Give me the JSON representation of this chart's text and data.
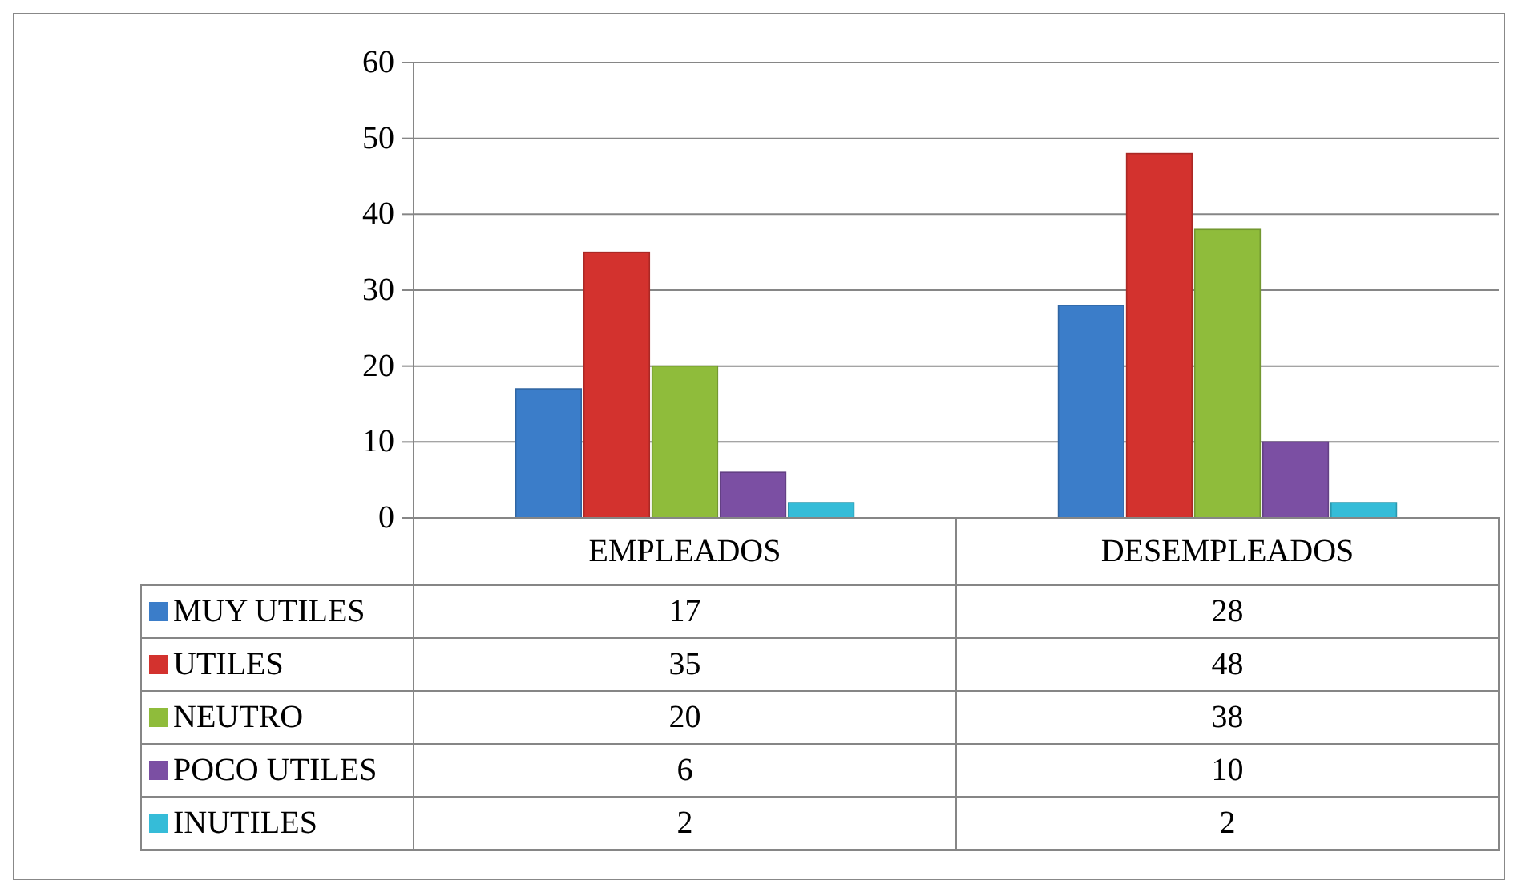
{
  "chart_data": {
    "type": "bar",
    "categories": [
      "EMPLEADOS",
      "DESEMPLEADOS"
    ],
    "series": [
      {
        "name": "MUY UTILES",
        "color": "#3b7dc9",
        "values": [
          17,
          28
        ]
      },
      {
        "name": "UTILES",
        "color": "#d3322e",
        "values": [
          35,
          48
        ]
      },
      {
        "name": "NEUTRO",
        "color": "#8fbc3b",
        "values": [
          20,
          38
        ]
      },
      {
        "name": "POCO UTILES",
        "color": "#7b4fa3",
        "values": [
          6,
          10
        ]
      },
      {
        "name": "INUTILES",
        "color": "#35bcd8",
        "values": [
          2,
          2
        ]
      }
    ],
    "ylim": [
      0,
      60
    ],
    "yticks": [
      0,
      10,
      20,
      30,
      40,
      50,
      60
    ],
    "grid": "y",
    "legend": "bottom",
    "data_labels": true
  }
}
